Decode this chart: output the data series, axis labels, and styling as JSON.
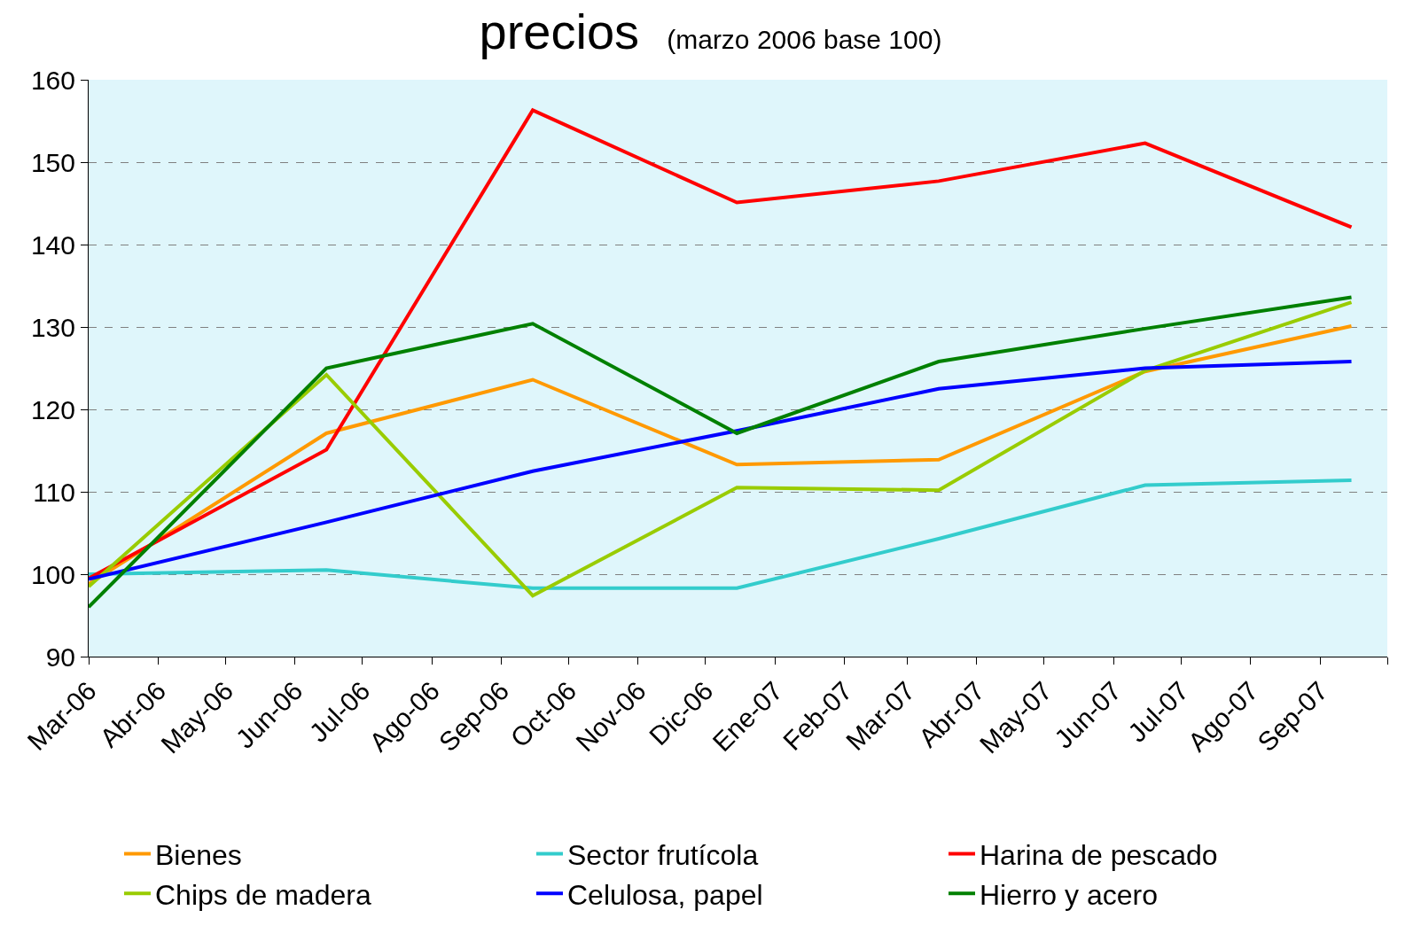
{
  "chart_data": {
    "type": "line",
    "title": "precios",
    "subtitle": "(marzo 2006 base 100)",
    "x": [
      "2006-03-01",
      "2006-06-15",
      "2006-09-15",
      "2006-12-15",
      "2007-03-15",
      "2007-06-15",
      "2007-09-15"
    ],
    "series": [
      {
        "name": "Bienes",
        "color": "#ff9900",
        "values": [
          98.8,
          117.1,
          123.6,
          113.3,
          113.9,
          124.6,
          130.1
        ]
      },
      {
        "name": "Sector frutícola",
        "color": "#33cccc",
        "values": [
          100,
          100.5,
          98.3,
          98.3,
          104.3,
          110.8,
          111.4
        ]
      },
      {
        "name": "Harina de pescado",
        "color": "#ff0000",
        "values": [
          99.5,
          115.1,
          156.3,
          145.1,
          147.7,
          152.3,
          142.1
        ]
      },
      {
        "name": "Chips de madera",
        "color": "#99cc00",
        "values": [
          98.5,
          124.2,
          97.4,
          110.5,
          110.2,
          124.7,
          133.0
        ]
      },
      {
        "name": "Celulosa, papel",
        "color": "#0000ff",
        "values": [
          99.4,
          106.3,
          112.5,
          117.4,
          122.5,
          125.0,
          125.8
        ]
      },
      {
        "name": "Hierro y acero",
        "color": "#008000",
        "values": [
          96.0,
          125.0,
          130.4,
          117.1,
          125.8,
          129.8,
          133.6
        ]
      }
    ],
    "xlim": [
      "2006-03-01",
      "2007-10-01"
    ],
    "xticks": [
      {
        "value": "2006-03-01",
        "label": "Mar-06"
      },
      {
        "value": "2006-04-01",
        "label": "Abr-06"
      },
      {
        "value": "2006-05-01",
        "label": "May-06"
      },
      {
        "value": "2006-06-01",
        "label": "Jun-06"
      },
      {
        "value": "2006-07-01",
        "label": "Jul-06"
      },
      {
        "value": "2006-08-01",
        "label": "Ago-06"
      },
      {
        "value": "2006-09-01",
        "label": "Sep-06"
      },
      {
        "value": "2006-10-01",
        "label": "Oct-06"
      },
      {
        "value": "2006-11-01",
        "label": "Nov-06"
      },
      {
        "value": "2006-12-01",
        "label": "Dic-06"
      },
      {
        "value": "2007-01-01",
        "label": "Ene-07"
      },
      {
        "value": "2007-02-01",
        "label": "Feb-07"
      },
      {
        "value": "2007-03-01",
        "label": "Mar-07"
      },
      {
        "value": "2007-04-01",
        "label": "Abr-07"
      },
      {
        "value": "2007-05-01",
        "label": "May-07"
      },
      {
        "value": "2007-06-01",
        "label": "Jun-07"
      },
      {
        "value": "2007-07-01",
        "label": "Jul-07"
      },
      {
        "value": "2007-08-01",
        "label": "Ago-07"
      },
      {
        "value": "2007-09-01",
        "label": "Sep-07"
      },
      {
        "value": "2007-10-01",
        "label": null
      }
    ],
    "ylim": [
      90,
      160
    ],
    "yticks": [
      90,
      100,
      110,
      120,
      130,
      140,
      150,
      160
    ],
    "grid": "y",
    "legend": "bottom",
    "marker": "none",
    "line_style": "solid"
  }
}
